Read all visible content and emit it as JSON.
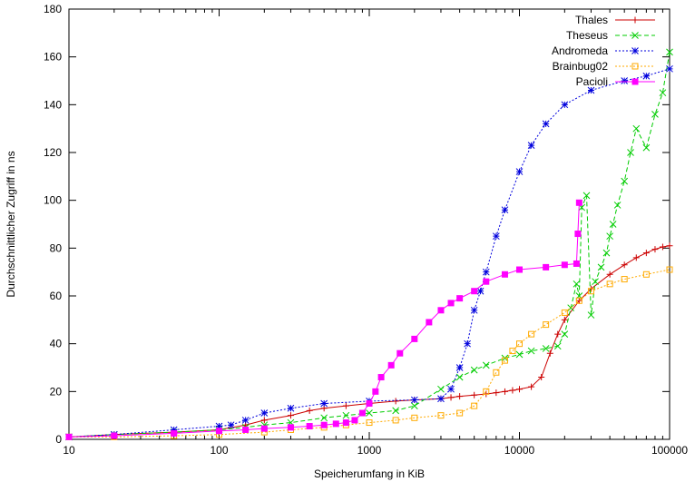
{
  "chart_data": {
    "type": "line",
    "title": "",
    "xlabel": "Speicherumfang in KiB",
    "ylabel": "Durchschnittlicher Zugriff in ns",
    "xscale": "log",
    "xlim": [
      10,
      100000
    ],
    "ylim": [
      0,
      180
    ],
    "x_ticks": [
      10,
      100,
      1000,
      10000,
      100000
    ],
    "x_tick_labels": [
      "10",
      "100",
      "1000",
      "10000",
      "100000"
    ],
    "y_ticks": [
      0,
      20,
      40,
      60,
      80,
      100,
      120,
      140,
      160,
      180
    ],
    "y_tick_labels": [
      "0",
      "20",
      "40",
      "60",
      "80",
      "100",
      "120",
      "140",
      "160",
      "180"
    ],
    "grid": false,
    "legend_position": "top-right",
    "series": [
      {
        "name": "Thales",
        "color": "#cc0000",
        "line_style": "solid",
        "marker": "plus",
        "x": [
          10,
          20,
          50,
          100,
          150,
          200,
          300,
          400,
          500,
          700,
          1000,
          1500,
          2000,
          3000,
          3500,
          4000,
          5000,
          6000,
          7000,
          8000,
          9000,
          10000,
          12000,
          14000,
          16000,
          18000,
          20000,
          25000,
          30000,
          40000,
          50000,
          60000,
          70000,
          80000,
          90000,
          100000
        ],
        "y": [
          1,
          2,
          3,
          4,
          6,
          8,
          10,
          12,
          13,
          14,
          15,
          16,
          16.5,
          17,
          17.5,
          18,
          18.5,
          19,
          19.5,
          20,
          20.5,
          21,
          22,
          26,
          36,
          44,
          50,
          58,
          63,
          69,
          73,
          76,
          78,
          79.5,
          80.5,
          81
        ]
      },
      {
        "name": "Theseus",
        "color": "#00cc00",
        "line_style": "dashed",
        "marker": "cross",
        "x": [
          10,
          20,
          50,
          100,
          150,
          200,
          300,
          500,
          700,
          1000,
          1500,
          2000,
          3000,
          4000,
          5000,
          6000,
          8000,
          10000,
          12000,
          15000,
          18000,
          20000,
          22000,
          24000,
          25000,
          26000,
          28000,
          30000,
          32000,
          35000,
          38000,
          40000,
          42000,
          45000,
          50000,
          55000,
          60000,
          70000,
          80000,
          90000,
          100000
        ],
        "y": [
          1,
          2,
          3,
          4,
          5,
          6,
          7,
          9,
          10,
          11,
          12,
          14,
          21,
          26,
          29,
          31,
          34,
          35.5,
          37,
          38,
          39,
          44,
          55,
          65,
          60,
          97,
          102,
          52,
          66,
          72,
          78,
          85,
          90,
          98,
          108,
          120,
          130,
          122,
          136,
          145,
          162
        ]
      },
      {
        "name": "Andromeda",
        "color": "#0000dd",
        "line_style": "dotted",
        "marker": "star",
        "x": [
          10,
          20,
          50,
          100,
          120,
          150,
          200,
          300,
          500,
          1000,
          2000,
          3000,
          3500,
          4000,
          4500,
          5000,
          5500,
          6000,
          7000,
          8000,
          10000,
          12000,
          15000,
          20000,
          30000,
          50000,
          70000,
          100000
        ],
        "y": [
          1,
          2,
          4,
          5.5,
          6,
          8,
          11,
          13,
          15,
          16,
          16.5,
          17,
          21,
          30,
          40,
          54,
          62,
          70,
          85,
          96,
          112,
          123,
          132,
          140,
          146,
          150,
          152,
          155
        ]
      },
      {
        "name": "Brainbug02",
        "color": "#ffaa00",
        "line_style": "dotted",
        "marker": "square-open",
        "x": [
          10,
          20,
          50,
          100,
          200,
          300,
          500,
          700,
          1000,
          1500,
          2000,
          3000,
          4000,
          5000,
          6000,
          7000,
          8000,
          9000,
          10000,
          12000,
          15000,
          20000,
          25000,
          30000,
          40000,
          50000,
          70000,
          100000
        ],
        "y": [
          1,
          1,
          1.5,
          2,
          3,
          4,
          5,
          6,
          7,
          8,
          9,
          10,
          11,
          14,
          20,
          28,
          33,
          37,
          40,
          44,
          48,
          53,
          58,
          62,
          65,
          67,
          69,
          71
        ]
      },
      {
        "name": "Pacioli",
        "color": "#ff00ff",
        "line_style": "solid",
        "marker": "square-filled",
        "x": [
          10,
          20,
          50,
          100,
          150,
          200,
          300,
          400,
          500,
          600,
          700,
          800,
          900,
          1000,
          1100,
          1200,
          1400,
          1600,
          2000,
          2500,
          3000,
          3500,
          4000,
          5000,
          6000,
          8000,
          10000,
          15000,
          20000,
          24000,
          24500,
          25000
        ],
        "y": [
          1,
          1.5,
          2.5,
          3.5,
          4,
          4.5,
          5,
          5.5,
          6,
          6.5,
          7,
          8,
          11,
          15,
          20,
          26,
          31,
          36,
          42,
          49,
          54,
          57,
          59,
          62,
          66,
          69,
          71,
          72,
          73,
          73.5,
          86,
          99
        ]
      }
    ]
  }
}
